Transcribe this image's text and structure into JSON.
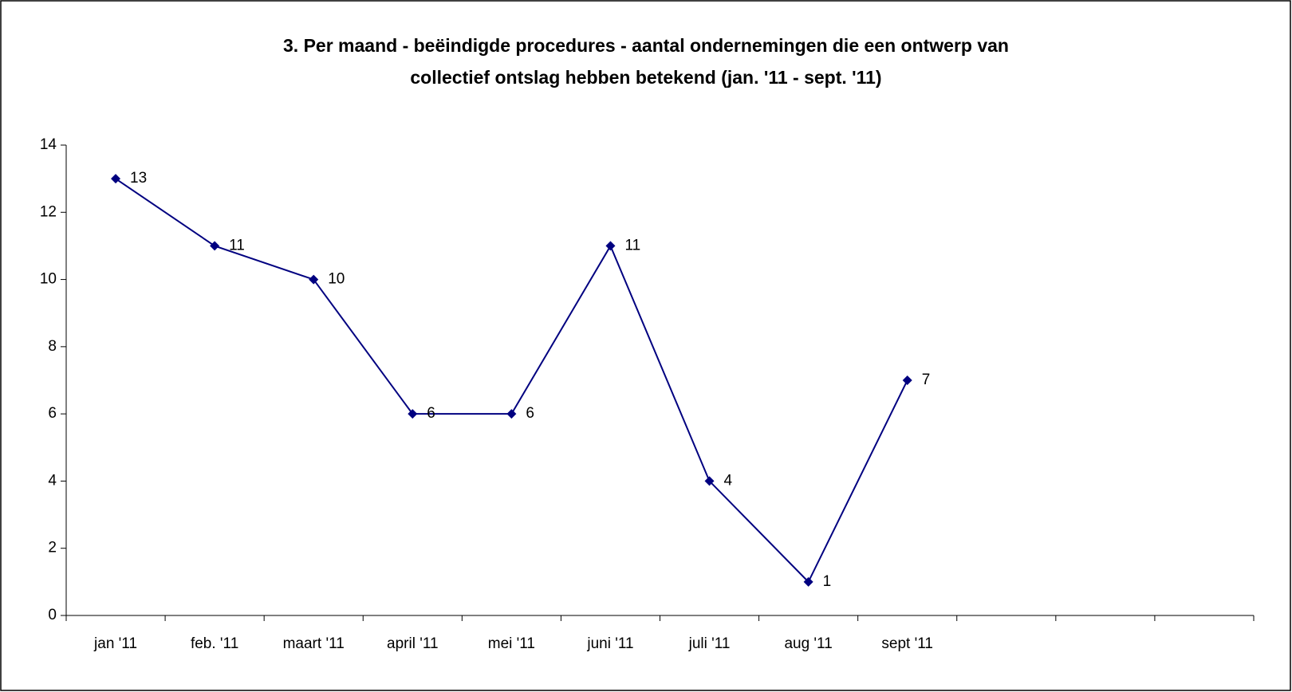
{
  "chart_data": {
    "type": "line",
    "title": [
      "3. Per maand - beëindigde procedures - aantal ondernemingen die een ontwerp van",
      "collectief ontslag hebben betekend (jan. '11 - sept. '11)"
    ],
    "categories": [
      "jan '11",
      "feb. '11",
      "maart '11",
      "april '11",
      "mei '11",
      "juni '11",
      "juli '11",
      "aug '11",
      "sept '11",
      null,
      null,
      null
    ],
    "values": [
      13,
      11,
      10,
      6,
      6,
      11,
      4,
      1,
      7,
      null,
      null,
      null
    ],
    "color": "#000080",
    "ylim": [
      0,
      14
    ],
    "yticks": [
      0,
      2,
      4,
      6,
      8,
      10,
      12,
      14
    ],
    "grid": false
  }
}
